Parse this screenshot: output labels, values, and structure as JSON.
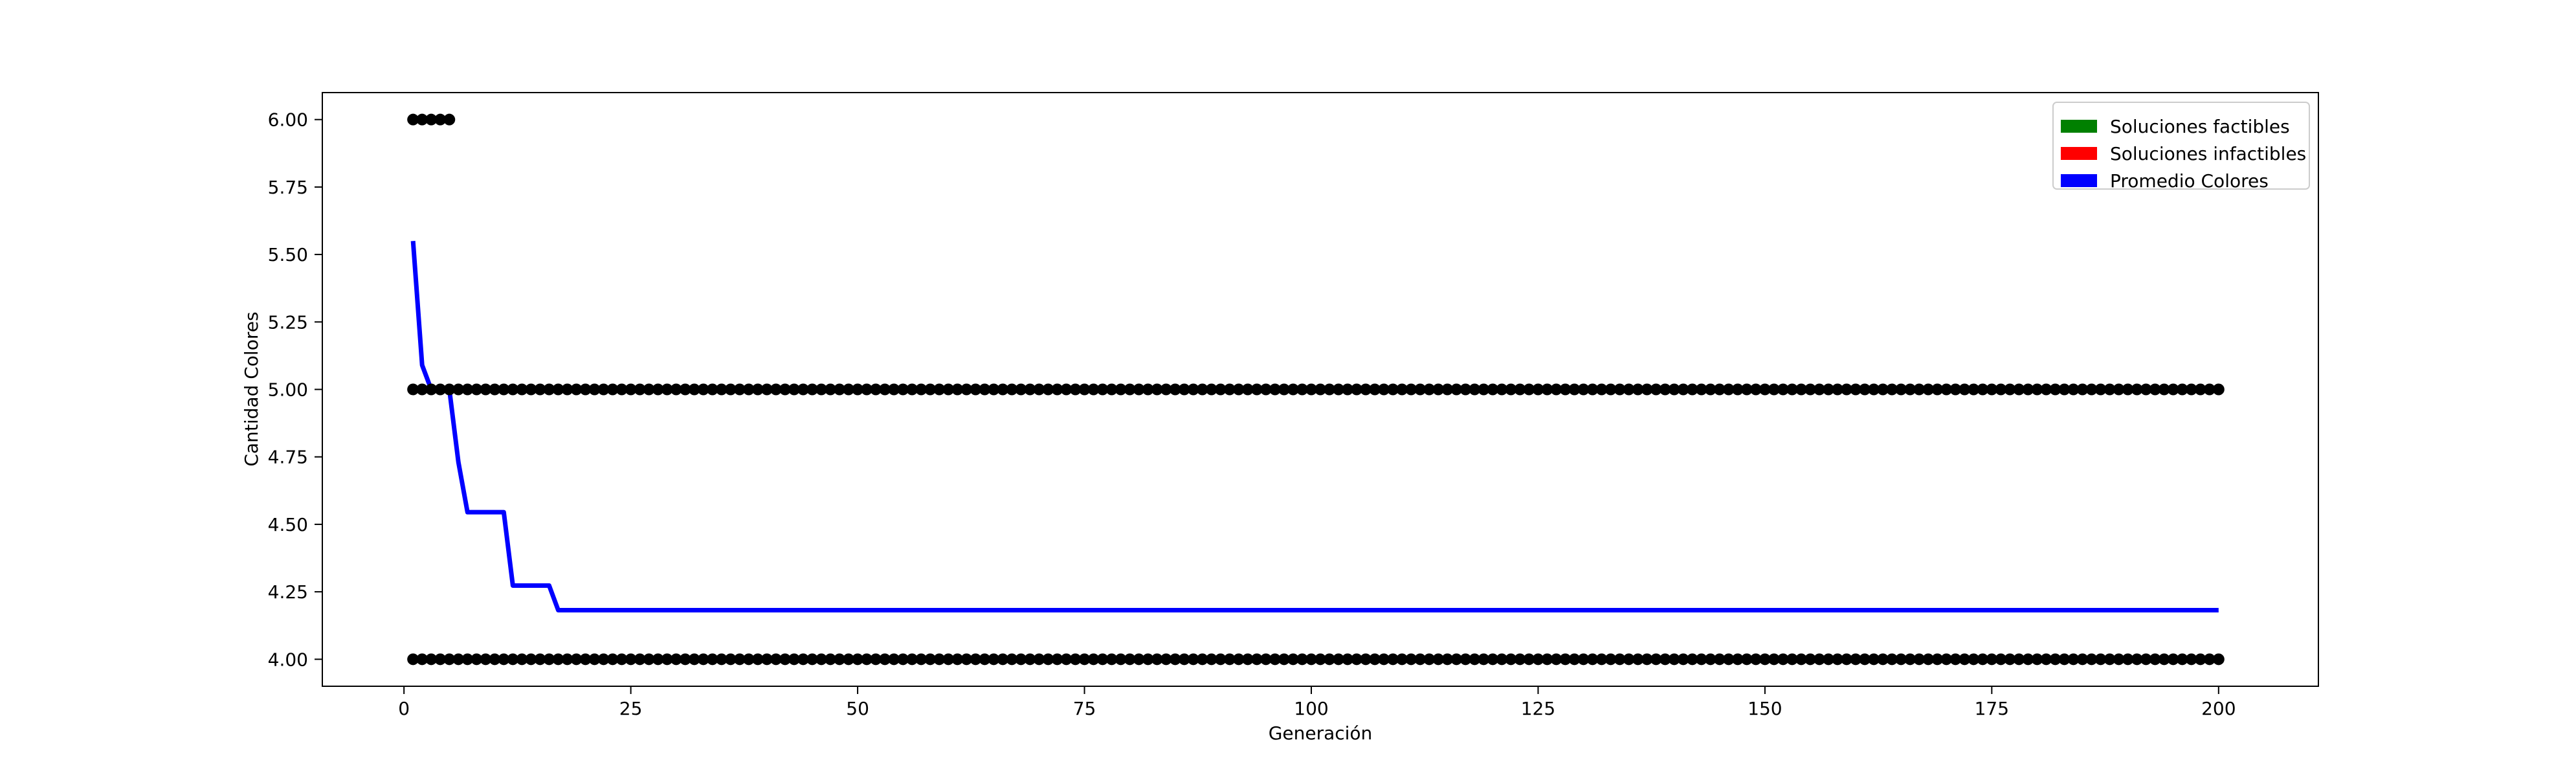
{
  "chart_data": {
    "type": "scatter",
    "title": "",
    "xlabel": "Generación",
    "ylabel": "Cantidad Colores",
    "xlim": [
      -9,
      211
    ],
    "ylim": [
      3.9,
      6.1
    ],
    "xticks": [
      0,
      25,
      50,
      75,
      100,
      125,
      150,
      175,
      200
    ],
    "yticks": [
      4.0,
      4.25,
      4.5,
      4.75,
      5.0,
      5.25,
      5.5,
      5.75,
      6.0
    ],
    "ytick_labels": [
      "4.00",
      "4.25",
      "4.50",
      "4.75",
      "5.00",
      "5.25",
      "5.50",
      "5.75",
      "6.00"
    ],
    "grid": false,
    "legend_position": "top-right",
    "legend": [
      {
        "label": "Soluciones factibles",
        "color": "#008000"
      },
      {
        "label": "Soluciones infactibles",
        "color": "#ff0000"
      },
      {
        "label": "Promedio Colores",
        "color": "#0000ff"
      }
    ],
    "series": [
      {
        "type": "scatter",
        "color": "#000000",
        "groups": [
          {
            "x_from": 1,
            "x_to": 5,
            "y": 6.0
          },
          {
            "x_from": 1,
            "x_to": 200,
            "y": 5.0
          },
          {
            "x_from": 1,
            "x_to": 200,
            "y": 4.0
          }
        ]
      },
      {
        "type": "line",
        "color": "#0000ff",
        "points": [
          [
            1,
            5.55
          ],
          [
            2,
            5.09
          ],
          [
            3,
            5.0
          ],
          [
            4,
            5.0
          ],
          [
            5,
            5.0
          ],
          [
            6,
            4.73
          ],
          [
            7,
            4.545
          ],
          [
            8,
            4.545
          ],
          [
            9,
            4.545
          ],
          [
            10,
            4.545
          ],
          [
            11,
            4.545
          ],
          [
            12,
            4.273
          ],
          [
            13,
            4.273
          ],
          [
            14,
            4.273
          ],
          [
            15,
            4.273
          ],
          [
            16,
            4.273
          ],
          [
            17,
            4.182
          ],
          [
            200,
            4.182
          ]
        ]
      }
    ]
  }
}
